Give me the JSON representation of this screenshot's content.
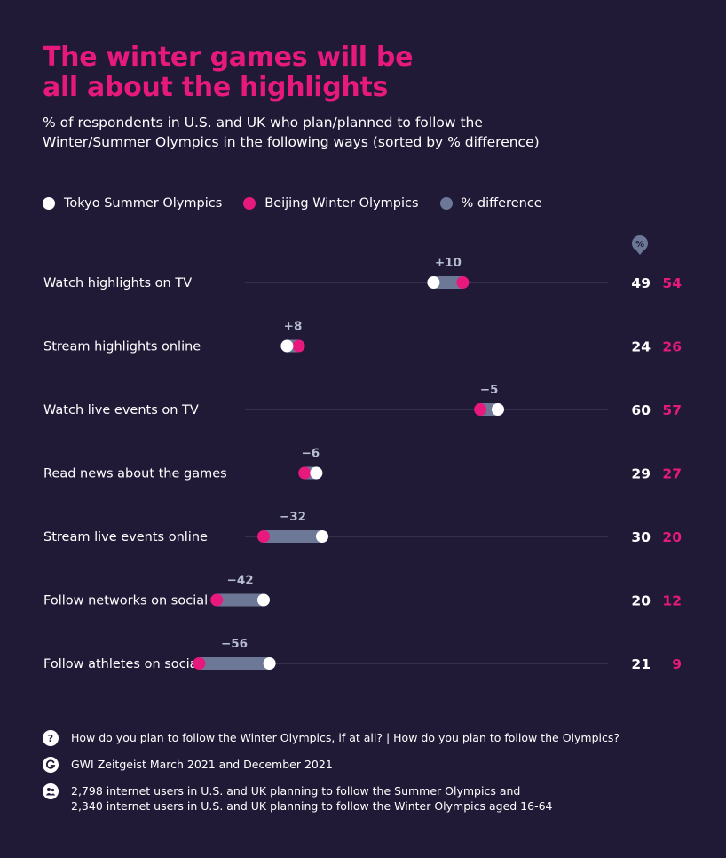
{
  "title_lines": [
    "The winter games will be",
    "all about the highlights"
  ],
  "subtitle_lines": [
    "% of respondents in U.S. and UK who plan/planned to follow the",
    "Winter/Summer Olympics in the following ways (sorted by % difference)"
  ],
  "legend": {
    "summer": "Tokyo Summer Olympics",
    "winter": "Beijing Winter Olympics",
    "diff": "% difference"
  },
  "unit_badge": "%",
  "colors": {
    "background": "#201a37",
    "summer": "#ffffff",
    "winter": "#e8197d",
    "diff": "#6c7896",
    "gridline": "#4a4560",
    "diff_label": "#b7bdd0"
  },
  "chart_data": {
    "type": "dumbbell",
    "x_range": [
      0,
      100
    ],
    "categories": [
      "Watch highlights on TV",
      "Stream highlights online",
      "Watch live events on TV",
      "Read news about the games",
      "Stream live events online",
      "Follow networks on social",
      "Follow athletes on social"
    ],
    "series": [
      {
        "name": "Tokyo Summer Olympics",
        "values": [
          49,
          24,
          60,
          29,
          30,
          20,
          21
        ]
      },
      {
        "name": "Beijing Winter Olympics",
        "values": [
          54,
          26,
          57,
          27,
          20,
          12,
          9
        ]
      }
    ],
    "differences": [
      "+10",
      "+8",
      "−5",
      "−6",
      "−32",
      "−42",
      "−56"
    ]
  },
  "footer": {
    "question_icon": "question-icon",
    "question": "How do you plan to follow the Winter Olympics, if at all? | How do you plan to follow the Olympics?",
    "source_icon": "gwi-logo-icon",
    "source": "GWI Zeitgeist March 2021 and December 2021",
    "base_icon": "people-icon",
    "base_lines": [
      "2,798 internet users in U.S. and UK planning to follow the Summer Olympics and",
      "2,340 internet users in U.S. and UK planning to follow the Winter Olympics aged 16-64"
    ]
  }
}
